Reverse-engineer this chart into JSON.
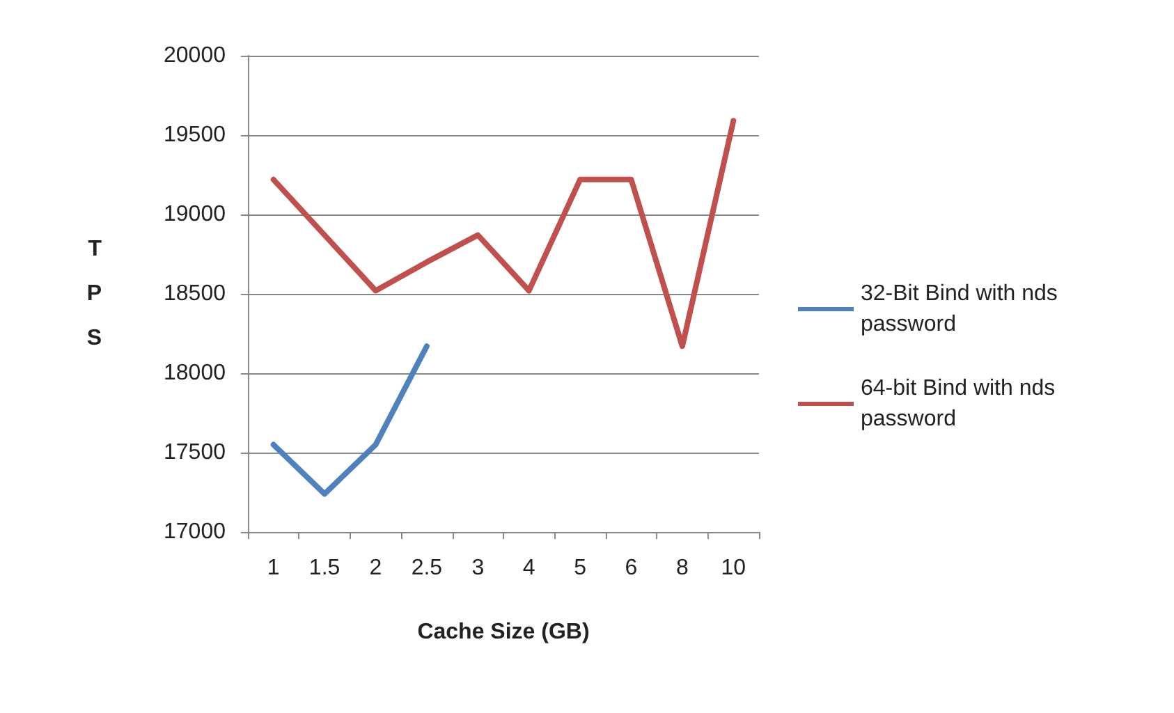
{
  "chart_data": {
    "type": "line",
    "xlabel": "Cache Size (GB)",
    "ylabel": "TPS",
    "categories": [
      "1",
      "1.5",
      "2",
      "2.5",
      "3",
      "4",
      "5",
      "6",
      "8",
      "10"
    ],
    "series": [
      {
        "name": "32-Bit Bind with nds password",
        "color": "#4f81bd",
        "values": [
          17550,
          17240,
          17550,
          18170,
          null,
          null,
          null,
          null,
          null,
          null
        ]
      },
      {
        "name": "64-bit Bind with nds password",
        "color": "#c0504d",
        "values": [
          19220,
          18870,
          18520,
          18700,
          18870,
          18520,
          19220,
          19220,
          18170,
          19590
        ]
      }
    ],
    "ylim": [
      17000,
      20000
    ],
    "yticks": [
      17000,
      17500,
      18000,
      18500,
      19000,
      19500,
      20000
    ],
    "grid": "y",
    "legend": "right",
    "marker": "none",
    "line_style": "solid"
  }
}
